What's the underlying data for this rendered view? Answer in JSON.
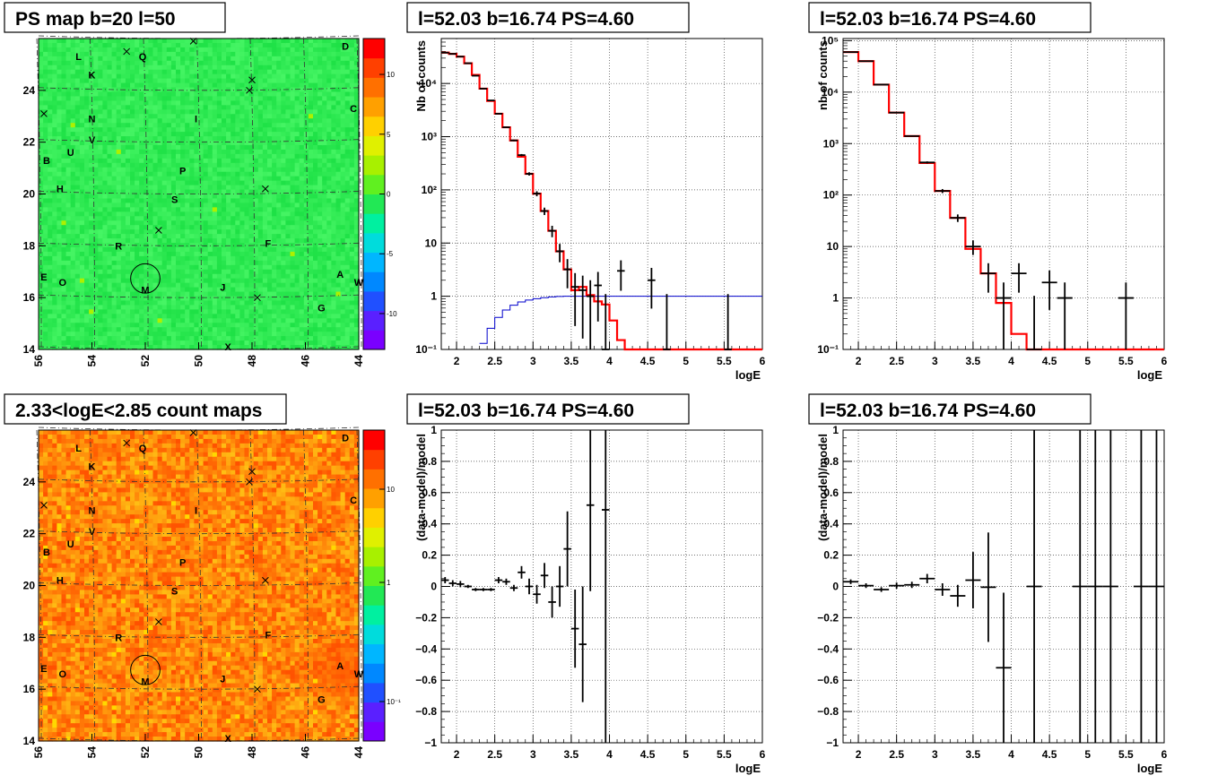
{
  "colors": {
    "model": "#ff0000",
    "background_model": "#0000cc",
    "data": "#000000",
    "map_top": "#22e855",
    "map_bottom": "#ff6a00"
  },
  "maps": [
    {
      "title": "PS map b=20 l=50",
      "xticks": [
        "56",
        "54",
        "52",
        "50",
        "48",
        "46",
        "44"
      ],
      "yticks": [
        "14",
        "16",
        "18",
        "20",
        "22",
        "24"
      ],
      "zticks": [
        "10",
        "5",
        "0",
        "-5",
        "-10"
      ],
      "scale": "linear",
      "palette": "green"
    },
    {
      "title": "2.33<logE<2.85 count maps",
      "xticks": [
        "56",
        "54",
        "52",
        "50",
        "48",
        "46",
        "44"
      ],
      "yticks": [
        "14",
        "16",
        "18",
        "20",
        "22",
        "24"
      ],
      "zticks": [
        "10",
        "1",
        "10⁻¹"
      ],
      "scale": "log",
      "palette": "orange"
    }
  ],
  "sources": [
    {
      "name": "L",
      "l": 54.5,
      "b": 25.3
    },
    {
      "name": "Q",
      "l": 52.1,
      "b": 25.3
    },
    {
      "name": "D",
      "l": 44.5,
      "b": 25.7
    },
    {
      "name": "K",
      "l": 54.0,
      "b": 24.6
    },
    {
      "name": "N",
      "l": 54.0,
      "b": 22.9
    },
    {
      "name": "C",
      "l": 44.2,
      "b": 23.3
    },
    {
      "name": "I",
      "l": 50.1,
      "b": 22.9
    },
    {
      "name": "V",
      "l": 54.0,
      "b": 22.1
    },
    {
      "name": "U",
      "l": 54.8,
      "b": 21.6
    },
    {
      "name": "B",
      "l": 55.7,
      "b": 21.3
    },
    {
      "name": "P",
      "l": 50.6,
      "b": 20.9
    },
    {
      "name": "H",
      "l": 55.2,
      "b": 20.2
    },
    {
      "name": "S",
      "l": 50.9,
      "b": 19.8
    },
    {
      "name": "R",
      "l": 53.0,
      "b": 18.0
    },
    {
      "name": "F",
      "l": 47.4,
      "b": 18.1
    },
    {
      "name": "E",
      "l": 55.8,
      "b": 16.8
    },
    {
      "name": "O",
      "l": 55.1,
      "b": 16.6
    },
    {
      "name": "M",
      "l": 52.0,
      "b": 16.3
    },
    {
      "name": "J",
      "l": 49.1,
      "b": 16.4
    },
    {
      "name": "A",
      "l": 44.7,
      "b": 16.9
    },
    {
      "name": "W",
      "l": 44.0,
      "b": 16.6
    },
    {
      "name": "G",
      "l": 45.4,
      "b": 15.6
    },
    {
      "name": "X",
      "l": 48.9,
      "b": 14.1
    }
  ],
  "crosses": [
    {
      "l": 52.7,
      "b": 25.5
    },
    {
      "l": 50.2,
      "b": 25.9
    },
    {
      "l": 48.0,
      "b": 24.4
    },
    {
      "l": 48.1,
      "b": 24.0
    },
    {
      "l": 55.8,
      "b": 23.1
    },
    {
      "l": 47.5,
      "b": 20.2
    },
    {
      "l": 51.5,
      "b": 18.6
    },
    {
      "l": 47.8,
      "b": 16.0
    }
  ],
  "marker": {
    "l": 52.0,
    "b": 16.74,
    "r": 0.55
  },
  "chart_data": [
    {
      "type": "line",
      "title": "l=52.03 b=16.74 PS=4.60",
      "xlabel": "logE",
      "ylabel": "Nb of counts",
      "xlim": [
        1.8,
        6
      ],
      "ylim": [
        0.1,
        70000
      ],
      "yscale": "log",
      "xticks": [
        "2",
        "2.5",
        "3",
        "3.5",
        "4",
        "4.5",
        "5",
        "5.5",
        "6"
      ],
      "yticks": [
        "10⁻¹",
        "1",
        "10",
        "10²",
        "10³",
        "10⁴"
      ],
      "model_edges": [
        1.8,
        1.9,
        2.0,
        2.1,
        2.2,
        2.3,
        2.4,
        2.5,
        2.6,
        2.7,
        2.8,
        2.9,
        3.0,
        3.1,
        3.2,
        3.3,
        3.4,
        3.5,
        3.6,
        3.7,
        3.8,
        3.9,
        4.0,
        4.1,
        4.2,
        4.3,
        6.0
      ],
      "model": [
        38000,
        36000,
        32000,
        24000,
        14500,
        8000,
        4700,
        2700,
        1500,
        850,
        420,
        200,
        85,
        40,
        17,
        7,
        3.2,
        1.3,
        1.5,
        1.05,
        0.8,
        0.7,
        0.35,
        0.15,
        0.1,
        0.1
      ],
      "background_edges": [
        2.3,
        2.4,
        2.5,
        2.6,
        2.7,
        2.8,
        2.9,
        3.0,
        3.1,
        3.2,
        3.3,
        3.4,
        3.5,
        3.6,
        6.0
      ],
      "background": [
        0.13,
        0.25,
        0.4,
        0.55,
        0.68,
        0.78,
        0.85,
        0.9,
        0.94,
        0.97,
        0.99,
        1.0,
        1.0,
        1.0
      ],
      "points": [
        {
          "x": 1.85,
          "y": 38000
        },
        {
          "x": 1.95,
          "y": 36000
        },
        {
          "x": 2.05,
          "y": 32000
        },
        {
          "x": 2.15,
          "y": 24000
        },
        {
          "x": 2.25,
          "y": 14000
        },
        {
          "x": 2.35,
          "y": 8000
        },
        {
          "x": 2.45,
          "y": 4800
        },
        {
          "x": 2.55,
          "y": 2700
        },
        {
          "x": 2.65,
          "y": 1500
        },
        {
          "x": 2.75,
          "y": 850
        },
        {
          "x": 2.85,
          "y": 450
        },
        {
          "x": 2.95,
          "y": 200
        },
        {
          "x": 3.05,
          "y": 85
        },
        {
          "x": 3.15,
          "y": 40
        },
        {
          "x": 3.25,
          "y": 17
        },
        {
          "x": 3.35,
          "y": 7
        },
        {
          "x": 3.45,
          "y": 3.2
        },
        {
          "x": 3.55,
          "y": 1.5
        },
        {
          "x": 3.65,
          "y": 1.3
        },
        {
          "x": 3.75,
          "y": 1
        },
        {
          "x": 3.85,
          "y": 1.6
        },
        {
          "x": 3.95,
          "y": 0.1
        },
        {
          "x": 4.15,
          "y": 3
        },
        {
          "x": 4.55,
          "y": 2
        },
        {
          "x": 4.75,
          "y": 0.1
        },
        {
          "x": 5.55,
          "y": 0.1
        }
      ]
    },
    {
      "type": "line",
      "title": "l=52.03 b=16.74 PS=4.60",
      "xlabel": "logE",
      "ylabel": "nb of counts",
      "xlim": [
        1.8,
        6
      ],
      "ylim": [
        0.1,
        110000
      ],
      "yscale": "log",
      "xticks": [
        "2",
        "2.5",
        "3",
        "3.5",
        "4",
        "4.5",
        "5",
        "5.5",
        "6"
      ],
      "yticks": [
        "10⁻¹",
        "1",
        "10",
        "10²",
        "10³",
        "10⁴",
        "10⁵"
      ],
      "model_edges": [
        1.8,
        2.0,
        2.2,
        2.4,
        2.6,
        2.8,
        3.0,
        3.2,
        3.4,
        3.6,
        3.8,
        4.0,
        4.2,
        4.4,
        6.0
      ],
      "model": [
        60000,
        40000,
        14000,
        4000,
        1400,
        420,
        120,
        36,
        9,
        3,
        0.8,
        0.2,
        0.1,
        0.1
      ],
      "points": [
        {
          "x": 1.9,
          "y": 60000
        },
        {
          "x": 2.1,
          "y": 40000
        },
        {
          "x": 2.3,
          "y": 14000
        },
        {
          "x": 2.5,
          "y": 4000
        },
        {
          "x": 2.7,
          "y": 1400
        },
        {
          "x": 2.9,
          "y": 430
        },
        {
          "x": 3.1,
          "y": 120
        },
        {
          "x": 3.3,
          "y": 36
        },
        {
          "x": 3.5,
          "y": 10
        },
        {
          "x": 3.7,
          "y": 3
        },
        {
          "x": 3.9,
          "y": 1
        },
        {
          "x": 4.1,
          "y": 3
        },
        {
          "x": 4.3,
          "y": 0.1
        },
        {
          "x": 4.5,
          "y": 2
        },
        {
          "x": 4.7,
          "y": 1
        },
        {
          "x": 5.5,
          "y": 1
        }
      ]
    },
    {
      "type": "scatter",
      "title": "l=52.03 b=16.74 PS=4.60",
      "xlabel": "logE",
      "ylabel": "(data-model)/model",
      "xlim": [
        1.8,
        6
      ],
      "ylim": [
        -1,
        1
      ],
      "xticks": [
        "2",
        "2.5",
        "3",
        "3.5",
        "4",
        "4.5",
        "5",
        "5.5",
        "6"
      ],
      "yticks": [
        "−1",
        "−0.8",
        "−0.6",
        "−0.4",
        "−0.2",
        "0",
        "0.2",
        "0.4",
        "0.6",
        "0.8",
        "1"
      ],
      "points": [
        {
          "x": 1.85,
          "y": 0.04
        },
        {
          "x": 1.95,
          "y": 0.02
        },
        {
          "x": 2.05,
          "y": 0.015
        },
        {
          "x": 2.15,
          "y": 0.0
        },
        {
          "x": 2.25,
          "y": -0.02
        },
        {
          "x": 2.35,
          "y": -0.02
        },
        {
          "x": 2.45,
          "y": -0.02
        },
        {
          "x": 2.55,
          "y": 0.04
        },
        {
          "x": 2.65,
          "y": 0.03
        },
        {
          "x": 2.75,
          "y": -0.01
        },
        {
          "x": 2.85,
          "y": 0.09
        },
        {
          "x": 2.95,
          "y": 0.0
        },
        {
          "x": 3.05,
          "y": -0.05
        },
        {
          "x": 3.15,
          "y": 0.07
        },
        {
          "x": 3.25,
          "y": -0.1
        },
        {
          "x": 3.35,
          "y": 0.0
        },
        {
          "x": 3.45,
          "y": 0.24
        },
        {
          "x": 3.55,
          "y": -0.27
        },
        {
          "x": 3.65,
          "y": -0.37
        },
        {
          "x": 3.75,
          "y": 0.52
        },
        {
          "x": 3.95,
          "y": 0.49
        }
      ]
    },
    {
      "type": "scatter",
      "title": "l=52.03 b=16.74 PS=4.60",
      "xlabel": "logE",
      "ylabel": "(data-model)/model",
      "xlim": [
        1.8,
        6
      ],
      "ylim": [
        -1,
        1
      ],
      "xticks": [
        "2",
        "2.5",
        "3",
        "3.5",
        "4",
        "4.5",
        "5",
        "5.5",
        "6"
      ],
      "yticks": [
        "−1",
        "−0.8",
        "−0.6",
        "−0.4",
        "−0.2",
        "0",
        "0.2",
        "0.4",
        "0.6",
        "0.8",
        "1"
      ],
      "points": [
        {
          "x": 1.9,
          "y": 0.03
        },
        {
          "x": 2.1,
          "y": 0.005
        },
        {
          "x": 2.3,
          "y": -0.02
        },
        {
          "x": 2.5,
          "y": 0.005
        },
        {
          "x": 2.7,
          "y": 0.01
        },
        {
          "x": 2.9,
          "y": 0.05
        },
        {
          "x": 3.1,
          "y": -0.02
        },
        {
          "x": 3.3,
          "y": -0.06
        },
        {
          "x": 3.5,
          "y": 0.04
        },
        {
          "x": 3.7,
          "y": -0.005
        },
        {
          "x": 3.9,
          "y": -0.52
        },
        {
          "x": 4.3,
          "y": 0.0
        },
        {
          "x": 4.9,
          "y": 0.0
        },
        {
          "x": 5.1,
          "y": 0.0
        },
        {
          "x": 5.3,
          "y": 0.0
        },
        {
          "x": 5.7,
          "y": 0.0
        },
        {
          "x": 5.9,
          "y": 0.0
        }
      ]
    }
  ]
}
